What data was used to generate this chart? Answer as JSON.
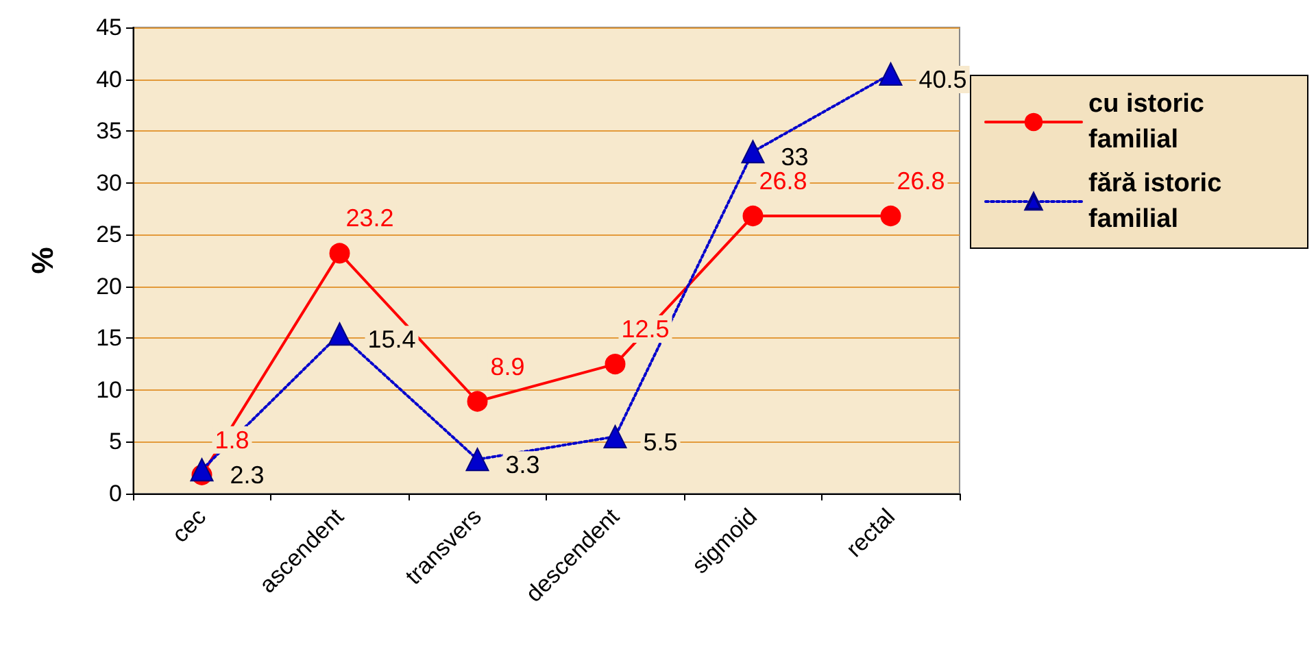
{
  "chart_data": {
    "type": "line",
    "ylabel": "%",
    "categories": [
      "cec",
      "ascendent",
      "transvers",
      "descendent",
      "sigmoid",
      "rectal"
    ],
    "series": [
      {
        "name": "cu istoric familial",
        "color": "#ff0000",
        "marker": "circle",
        "line_style": "solid",
        "values": [
          1.8,
          23.2,
          8.9,
          12.5,
          26.8,
          26.8
        ]
      },
      {
        "name": "fără istoric familial",
        "color": "#0000cc",
        "marker": "triangle",
        "line_style": "dotted",
        "values": [
          2.3,
          15.4,
          3.3,
          5.5,
          33,
          40.5
        ]
      }
    ],
    "ylim": [
      0,
      45
    ],
    "yticks": [
      0,
      5,
      10,
      15,
      20,
      25,
      30,
      35,
      40,
      45
    ],
    "grid": "y",
    "legend": "right",
    "data_labels": true
  }
}
